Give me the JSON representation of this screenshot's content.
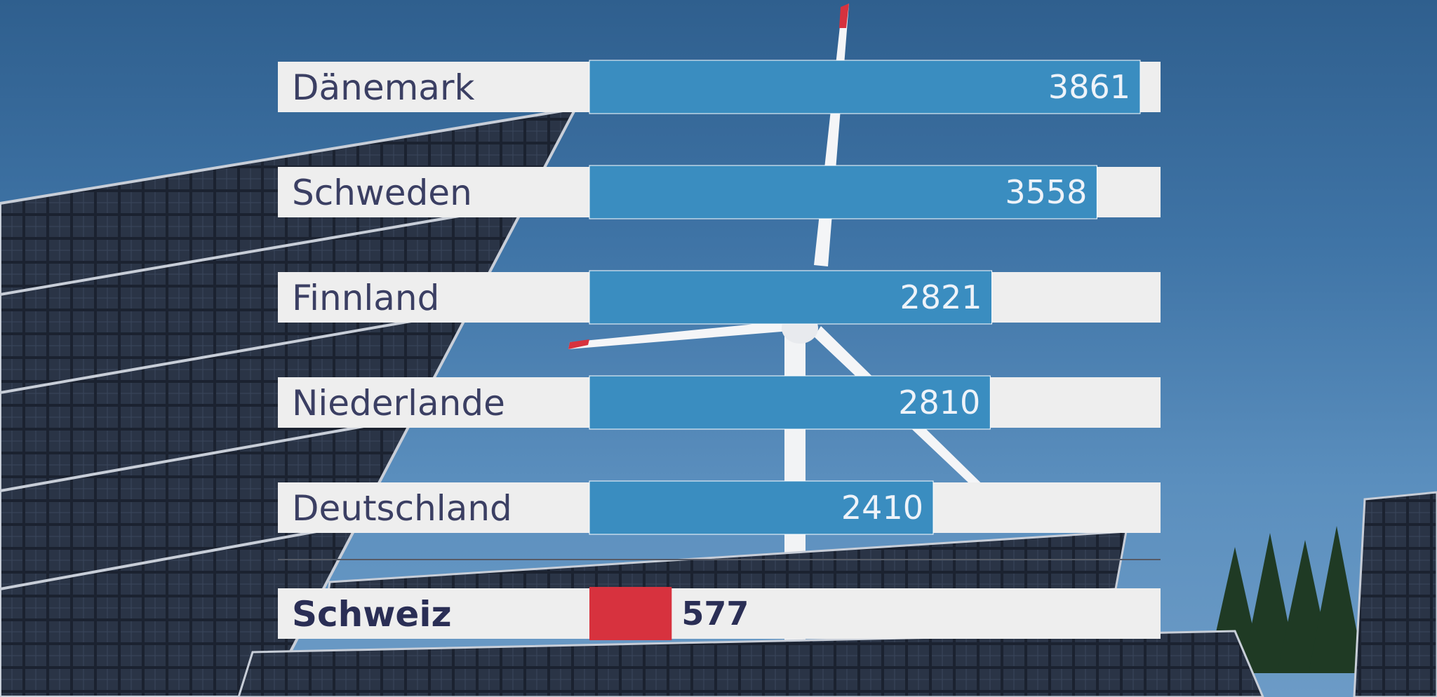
{
  "chart_data": {
    "type": "bar",
    "orientation": "horizontal",
    "categories": [
      "Dänemark",
      "Schweden",
      "Finnland",
      "Niederlande",
      "Deutschland",
      "Schweiz"
    ],
    "values": [
      3861,
      3558,
      2821,
      2810,
      2410,
      577
    ],
    "highlight": "Schweiz",
    "xlim": [
      0,
      4000
    ],
    "grid": false,
    "colors": {
      "bar": "#3a8dc0",
      "highlight": "#d7323e",
      "track": "#eeeeee",
      "label": "#3b3f63"
    }
  }
}
